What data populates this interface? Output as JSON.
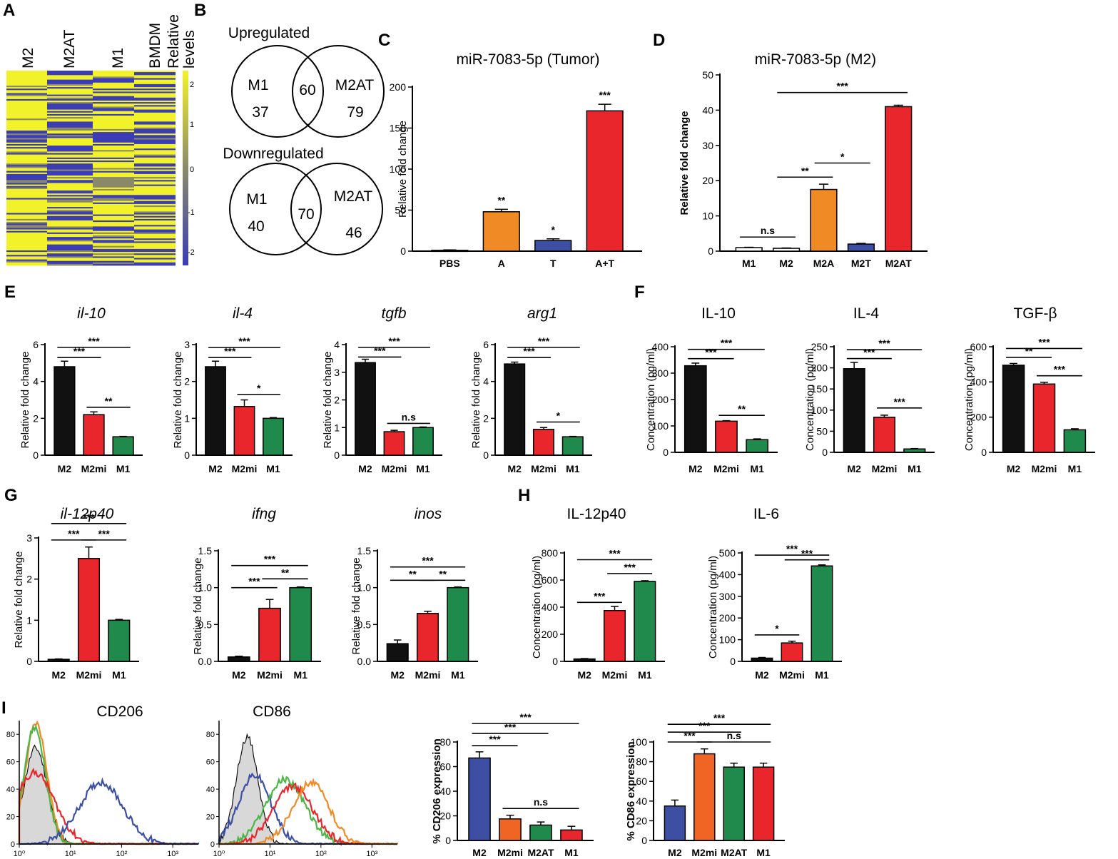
{
  "panels": {
    "A": {
      "letter": "A",
      "columns": [
        "M2",
        "M2AT",
        "M1",
        "BMDM"
      ],
      "scale_label_1": "Relative",
      "scale_label_2": "levels",
      "scale_ticks": [
        "2",
        "1",
        "0",
        "-1",
        "-2"
      ],
      "colors": {
        "high": "#f2f22a",
        "mid": "#8a8a6a",
        "low": "#3c3cb4"
      }
    },
    "B": {
      "letter": "B",
      "upregulated": {
        "title": "Upregulated",
        "left_label": "M1",
        "right_label": "M2AT",
        "left_only": "37",
        "overlap": "60",
        "right_only": "79"
      },
      "downregulated": {
        "title": "Downregulated",
        "left_label": "M1",
        "right_label": "M2AT",
        "left_only": "40",
        "overlap": "70",
        "right_only": "46"
      }
    },
    "E": {
      "letter": "E"
    },
    "F": {
      "letter": "F"
    },
    "G": {
      "letter": "G"
    },
    "H": {
      "letter": "H"
    },
    "I": {
      "letter": "I",
      "histograms": [
        {
          "title": "CD206",
          "y_ticks": [
            "0",
            "20",
            "40",
            "60",
            "80"
          ]
        },
        {
          "title": "CD86",
          "y_ticks": [
            "0",
            "20",
            "40",
            "60",
            "80"
          ]
        }
      ],
      "x_ticks": [
        "10⁰",
        "10¹",
        "10²",
        "10³"
      ]
    }
  },
  "chart_data": [
    {
      "id": "C",
      "letter": "C",
      "type": "bar",
      "title": "miR-7083-5p (Tumor)",
      "title_italic": false,
      "ylabel": "Relative fold change",
      "ylabel_bold": false,
      "ylim": [
        0,
        200
      ],
      "yticks": [
        0,
        50,
        100,
        150,
        200
      ],
      "categories": [
        "PBS",
        "A",
        "T",
        "A+T"
      ],
      "values": [
        1,
        48,
        13,
        171
      ],
      "errors": [
        0.5,
        3,
        2,
        8
      ],
      "colors": [
        "#ffffff",
        "#f08a24",
        "#3c4fa3",
        "#e8262c"
      ],
      "sig_above": [
        "",
        "**",
        "*",
        "***"
      ],
      "brackets": []
    },
    {
      "id": "D",
      "letter": "D",
      "type": "bar",
      "title": "miR-7083-5p (M2)",
      "title_italic": false,
      "ylabel": "Relative fold change",
      "ylabel_bold": true,
      "ylim": [
        0,
        50
      ],
      "yticks": [
        0,
        10,
        20,
        30,
        40,
        50
      ],
      "categories": [
        "M1",
        "M2",
        "M2A",
        "M2T",
        "M2AT"
      ],
      "values": [
        1,
        0.8,
        17.5,
        2,
        41
      ],
      "errors": [
        0.1,
        0.1,
        1.5,
        0.2,
        0.4
      ],
      "colors": [
        "#ffffff",
        "#ffffff",
        "#f08a24",
        "#3c4fa3",
        "#e8262c"
      ],
      "brackets": [
        {
          "from": 1,
          "to": 4,
          "label": "***",
          "lv": 45
        },
        {
          "from": 2,
          "to": 3,
          "label": "*",
          "lv": 25
        },
        {
          "from": 1,
          "to": 2,
          "label": "**",
          "lv": 21
        },
        {
          "from": 0,
          "to": 1,
          "label": "n.s",
          "lv": 4
        }
      ]
    },
    {
      "id": "E1",
      "letter": "",
      "type": "bar",
      "title": "il-10",
      "title_italic": true,
      "ylabel": "Relative fold change",
      "ylabel_bold": false,
      "ylim": [
        0,
        6
      ],
      "yticks": [
        0,
        2,
        4,
        6
      ],
      "categories": [
        "M2",
        "M2mi",
        "M1"
      ],
      "values": [
        4.8,
        2.2,
        1
      ],
      "errors": [
        0.3,
        0.15,
        0.02
      ],
      "colors": [
        "#111111",
        "#e8262c",
        "#1f8a4c"
      ],
      "brackets": [
        {
          "from": 0,
          "to": 2,
          "label": "***",
          "lv": 5.85
        },
        {
          "from": 0,
          "to": 1,
          "label": "***",
          "lv": 5.3
        },
        {
          "from": 1,
          "to": 2,
          "label": "**",
          "lv": 2.6
        }
      ]
    },
    {
      "id": "E2",
      "letter": "",
      "type": "bar",
      "title": "il-4",
      "title_italic": true,
      "ylabel": "Relative fold change",
      "ylabel_bold": false,
      "ylim": [
        0,
        3
      ],
      "yticks": [
        0,
        1,
        2,
        3
      ],
      "categories": [
        "M2",
        "M2mi",
        "M1"
      ],
      "values": [
        2.4,
        1.32,
        1
      ],
      "errors": [
        0.15,
        0.18,
        0.02
      ],
      "colors": [
        "#111111",
        "#e8262c",
        "#1f8a4c"
      ],
      "brackets": [
        {
          "from": 0,
          "to": 2,
          "label": "***",
          "lv": 2.92
        },
        {
          "from": 0,
          "to": 1,
          "label": "***",
          "lv": 2.65
        },
        {
          "from": 1,
          "to": 2,
          "label": "*",
          "lv": 1.65
        }
      ]
    },
    {
      "id": "E3",
      "letter": "",
      "type": "bar",
      "title": "tgfb",
      "title_italic": true,
      "ylabel": "Relative fold change",
      "ylabel_bold": false,
      "ylim": [
        0,
        4
      ],
      "yticks": [
        0,
        1,
        2,
        3,
        4
      ],
      "categories": [
        "M2",
        "M2mi",
        "M1"
      ],
      "values": [
        3.35,
        0.85,
        1
      ],
      "errors": [
        0.12,
        0.05,
        0.02
      ],
      "colors": [
        "#111111",
        "#e8262c",
        "#1f8a4c"
      ],
      "brackets": [
        {
          "from": 0,
          "to": 2,
          "label": "***",
          "lv": 3.9
        },
        {
          "from": 0,
          "to": 1,
          "label": "***",
          "lv": 3.55
        },
        {
          "from": 1,
          "to": 2,
          "label": "n.s",
          "lv": 1.15
        }
      ]
    },
    {
      "id": "E4",
      "letter": "",
      "type": "bar",
      "title": "arg1",
      "title_italic": true,
      "ylabel": "Relative fold change",
      "ylabel_bold": false,
      "ylim": [
        0,
        6
      ],
      "yticks": [
        0,
        2,
        4,
        6
      ],
      "categories": [
        "M2",
        "M2mi",
        "M1"
      ],
      "values": [
        4.95,
        1.4,
        1
      ],
      "errors": [
        0.1,
        0.1,
        0.02
      ],
      "colors": [
        "#111111",
        "#e8262c",
        "#1f8a4c"
      ],
      "brackets": [
        {
          "from": 0,
          "to": 2,
          "label": "***",
          "lv": 5.85
        },
        {
          "from": 0,
          "to": 1,
          "label": "***",
          "lv": 5.3
        },
        {
          "from": 1,
          "to": 2,
          "label": "*",
          "lv": 1.8
        }
      ]
    },
    {
      "id": "F1",
      "letter": "",
      "type": "bar",
      "title": "IL-10",
      "title_italic": false,
      "ylabel": "Concentration (pg/ml)",
      "ylabel_bold": false,
      "ylim": [
        0,
        400
      ],
      "yticks": [
        0,
        100,
        200,
        300,
        400
      ],
      "categories": [
        "M2",
        "M2mi",
        "M1"
      ],
      "values": [
        328,
        118,
        48
      ],
      "errors": [
        10,
        2,
        3
      ],
      "colors": [
        "#111111",
        "#e8262c",
        "#1f8a4c"
      ],
      "brackets": [
        {
          "from": 0,
          "to": 2,
          "label": "***",
          "lv": 390
        },
        {
          "from": 0,
          "to": 1,
          "label": "***",
          "lv": 355
        },
        {
          "from": 1,
          "to": 2,
          "label": "**",
          "lv": 140
        }
      ]
    },
    {
      "id": "F2",
      "letter": "",
      "type": "bar",
      "title": "IL-4",
      "title_italic": false,
      "ylabel": "Concentration (pg/ml)",
      "ylabel_bold": false,
      "ylim": [
        0,
        250
      ],
      "yticks": [
        0,
        50,
        100,
        150,
        200,
        250
      ],
      "categories": [
        "M2",
        "M2mi",
        "M1"
      ],
      "values": [
        198,
        83,
        8
      ],
      "errors": [
        15,
        5,
        1
      ],
      "colors": [
        "#111111",
        "#e8262c",
        "#1f8a4c"
      ],
      "brackets": [
        {
          "from": 0,
          "to": 2,
          "label": "***",
          "lv": 243
        },
        {
          "from": 0,
          "to": 1,
          "label": "***",
          "lv": 222
        },
        {
          "from": 1,
          "to": 2,
          "label": "***",
          "lv": 105
        }
      ]
    },
    {
      "id": "F3",
      "letter": "",
      "type": "bar",
      "title": "TGF-β",
      "title_italic": false,
      "ylabel": "Concentration (pg/ml)",
      "ylabel_bold": false,
      "ylim": [
        0,
        600
      ],
      "yticks": [
        0,
        200,
        400,
        600
      ],
      "categories": [
        "M2",
        "M2mi",
        "M1"
      ],
      "values": [
        495,
        388,
        128
      ],
      "errors": [
        10,
        10,
        6
      ],
      "colors": [
        "#111111",
        "#e8262c",
        "#1f8a4c"
      ],
      "brackets": [
        {
          "from": 0,
          "to": 2,
          "label": "***",
          "lv": 590
        },
        {
          "from": 0,
          "to": 1,
          "label": "**",
          "lv": 540
        },
        {
          "from": 1,
          "to": 2,
          "label": "***",
          "lv": 435
        }
      ]
    },
    {
      "id": "G1",
      "letter": "",
      "type": "bar",
      "title": "il-12p40",
      "title_italic": true,
      "ylabel": "Relative fold change",
      "ylabel_bold": false,
      "ylim": [
        0,
        3
      ],
      "yticks": [
        0,
        1,
        2,
        3
      ],
      "categories": [
        "M2",
        "M2mi",
        "M1"
      ],
      "values": [
        0.05,
        2.5,
        1
      ],
      "errors": [
        0.01,
        0.28,
        0.02
      ],
      "colors": [
        "#111111",
        "#e8262c",
        "#1f8a4c"
      ],
      "brackets": [
        {
          "from": 0,
          "to": 2,
          "label": "***",
          "lv": 3.35
        },
        {
          "from": 0,
          "to": 1,
          "label": "***",
          "lv": 2.95
        },
        {
          "from": 1,
          "to": 2,
          "label": "***",
          "lv": 2.95
        }
      ]
    },
    {
      "id": "G2",
      "letter": "",
      "type": "bar",
      "title": "ifng",
      "title_italic": true,
      "ylabel": "Relative fold change",
      "ylabel_bold": false,
      "ylim": [
        0,
        1.5
      ],
      "yticks": [
        0.0,
        0.5,
        1.0,
        1.5
      ],
      "categories": [
        "M2",
        "M2mi",
        "M1"
      ],
      "values": [
        0.06,
        0.72,
        1.0
      ],
      "errors": [
        0.01,
        0.12,
        0.01
      ],
      "colors": [
        "#111111",
        "#e8262c",
        "#1f8a4c"
      ],
      "brackets": [
        {
          "from": 0,
          "to": 2,
          "label": "***",
          "lv": 1.3
        },
        {
          "from": 0,
          "to": 1,
          "label": "***",
          "lv": 1.0
        },
        {
          "from": 1,
          "to": 2,
          "label": "**",
          "lv": 1.12
        }
      ]
    },
    {
      "id": "G3",
      "letter": "",
      "type": "bar",
      "title": "inos",
      "title_italic": true,
      "ylabel": "Relative fold change",
      "ylabel_bold": false,
      "ylim": [
        0,
        1.5
      ],
      "yticks": [
        0.0,
        0.5,
        1.0,
        1.5
      ],
      "categories": [
        "M2",
        "M2mi",
        "M1"
      ],
      "values": [
        0.24,
        0.65,
        1.0
      ],
      "errors": [
        0.05,
        0.03,
        0.01
      ],
      "colors": [
        "#111111",
        "#e8262c",
        "#1f8a4c"
      ],
      "brackets": [
        {
          "from": 0,
          "to": 2,
          "label": "***",
          "lv": 1.28
        },
        {
          "from": 0,
          "to": 1,
          "label": "**",
          "lv": 1.1
        },
        {
          "from": 1,
          "to": 2,
          "label": "**",
          "lv": 1.1
        }
      ]
    },
    {
      "id": "H1",
      "letter": "",
      "type": "bar",
      "title": "IL-12p40",
      "title_italic": false,
      "ylabel": "Concentration (pg/ml)",
      "ylabel_bold": false,
      "ylim": [
        0,
        800
      ],
      "yticks": [
        0,
        200,
        400,
        600,
        800
      ],
      "categories": [
        "M2",
        "M2mi",
        "M1"
      ],
      "values": [
        18,
        375,
        590
      ],
      "errors": [
        3,
        30,
        5
      ],
      "colors": [
        "#111111",
        "#e8262c",
        "#1f8a4c"
      ],
      "brackets": [
        {
          "from": 0,
          "to": 2,
          "label": "***",
          "lv": 750
        },
        {
          "from": 1,
          "to": 2,
          "label": "***",
          "lv": 648
        },
        {
          "from": 0,
          "to": 1,
          "label": "***",
          "lv": 435
        }
      ]
    },
    {
      "id": "H2",
      "letter": "",
      "type": "bar",
      "title": "IL-6",
      "title_italic": false,
      "ylabel": "Concentration (pg/ml)",
      "ylabel_bold": false,
      "ylim": [
        0,
        500
      ],
      "yticks": [
        0,
        100,
        200,
        300,
        400,
        500
      ],
      "categories": [
        "M2",
        "M2mi",
        "M1"
      ],
      "values": [
        15,
        85,
        440
      ],
      "errors": [
        3,
        8,
        5
      ],
      "colors": [
        "#111111",
        "#e8262c",
        "#1f8a4c"
      ],
      "brackets": [
        {
          "from": 0,
          "to": 2,
          "label": "***",
          "lv": 490
        },
        {
          "from": 1,
          "to": 2,
          "label": "***",
          "lv": 468
        },
        {
          "from": 0,
          "to": 1,
          "label": "*",
          "lv": 122
        }
      ]
    },
    {
      "id": "I3",
      "letter": "",
      "type": "bar",
      "title": "",
      "title_italic": false,
      "ylabel": "% CD206 expression",
      "ylabel_bold": true,
      "ylim": [
        0,
        80
      ],
      "yticks": [
        0,
        20,
        40,
        60,
        80
      ],
      "categories": [
        "M2",
        "M2mi",
        "M2AT",
        "M1"
      ],
      "values": [
        67,
        17.5,
        12.5,
        8.5
      ],
      "errors": [
        5,
        3,
        2.5,
        3
      ],
      "colors": [
        "#3c4fa3",
        "#f06424",
        "#1f8a4c",
        "#e8262c"
      ],
      "brackets": [
        {
          "from": 0,
          "to": 3,
          "label": "***",
          "lv": 95
        },
        {
          "from": 0,
          "to": 2,
          "label": "***",
          "lv": 87
        },
        {
          "from": 0,
          "to": 1,
          "label": "***",
          "lv": 77
        },
        {
          "from": 1,
          "to": 3,
          "label": "n.s",
          "lv": 26
        }
      ]
    },
    {
      "id": "I4",
      "letter": "",
      "type": "bar",
      "title": "",
      "title_italic": false,
      "ylabel": "% CD86 expression",
      "ylabel_bold": true,
      "ylim": [
        0,
        100
      ],
      "yticks": [
        0,
        20,
        40,
        60,
        80,
        100
      ],
      "categories": [
        "M2",
        "M2mi",
        "M2AT",
        "M1"
      ],
      "values": [
        35,
        88,
        74.5,
        74.5
      ],
      "errors": [
        6,
        5,
        4,
        4
      ],
      "colors": [
        "#3c4fa3",
        "#f06424",
        "#1f8a4c",
        "#e8262c"
      ],
      "brackets": [
        {
          "from": 0,
          "to": 3,
          "label": "***",
          "lv": 118
        },
        {
          "from": 0,
          "to": 2,
          "label": "***",
          "lv": 110
        },
        {
          "from": 0,
          "to": 1,
          "label": "***",
          "lv": 100
        },
        {
          "from": 1,
          "to": 3,
          "label": "n.s",
          "lv": 100
        }
      ]
    }
  ]
}
